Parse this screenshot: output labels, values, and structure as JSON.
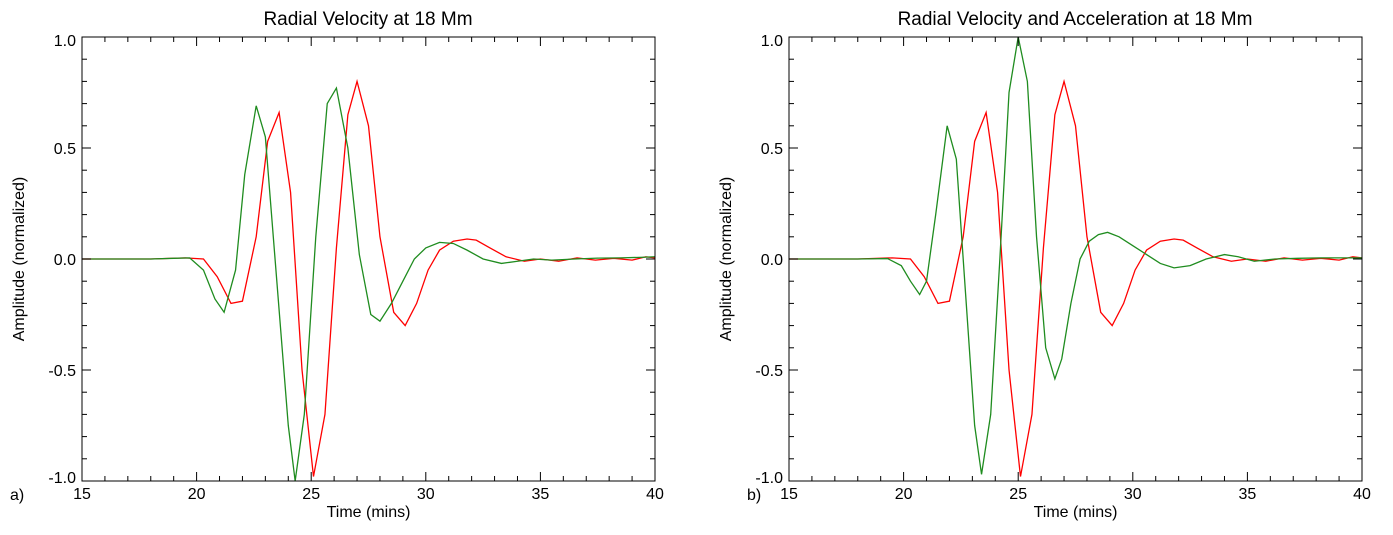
{
  "chart_data": [
    {
      "type": "line",
      "panel_label": "a)",
      "title": "Radial Velocity at 18 Mm",
      "xlabel": "Time (mins)",
      "ylabel": "Amplitude (normalized)",
      "xlim": [
        15,
        40
      ],
      "ylim": [
        -1.0,
        1.0
      ],
      "xticks": [
        "15",
        "20",
        "25",
        "30",
        "35",
        "40"
      ],
      "yticks": [
        "-1.0",
        "-0.5",
        "0.0",
        "0.5",
        "1.0"
      ],
      "grid": false,
      "series": [
        {
          "color": "#ff0000",
          "x": [
            15,
            18,
            19.5,
            20.3,
            20.9,
            21.5,
            22.0,
            22.6,
            23.1,
            23.6,
            24.1,
            24.6,
            25.1,
            25.6,
            26.1,
            26.6,
            27.0,
            27.5,
            28.0,
            28.6,
            29.1,
            29.6,
            30.1,
            30.6,
            31.2,
            31.8,
            32.2,
            32.8,
            33.5,
            34.3,
            35.0,
            35.8,
            36.6,
            37.4,
            38.2,
            39.0,
            39.6,
            40
          ],
          "y": [
            0,
            0,
            0.005,
            0,
            -0.08,
            -0.2,
            -0.19,
            0.1,
            0.53,
            0.66,
            0.3,
            -0.5,
            -0.98,
            -0.7,
            0.05,
            0.65,
            0.8,
            0.6,
            0.1,
            -0.24,
            -0.3,
            -0.2,
            -0.05,
            0.04,
            0.08,
            0.09,
            0.085,
            0.05,
            0.01,
            -0.01,
            0,
            -0.01,
            0.005,
            -0.005,
            0.003,
            -0.005,
            0.01,
            0.005
          ]
        },
        {
          "color": "#1f8c1f",
          "x": [
            15,
            18,
            19.0,
            19.7,
            20.3,
            20.8,
            21.2,
            21.7,
            22.1,
            22.6,
            23.0,
            23.5,
            24.0,
            24.3,
            24.7,
            25.2,
            25.7,
            26.1,
            26.6,
            27.1,
            27.6,
            28.0,
            28.5,
            29.0,
            29.5,
            30.0,
            30.6,
            31.2,
            31.8,
            32.5,
            33.3,
            34.0,
            34.7,
            35.5,
            36.5,
            37.5,
            38.5,
            39.5,
            40
          ],
          "y": [
            0,
            0,
            0.003,
            0.005,
            -0.05,
            -0.18,
            -0.24,
            -0.05,
            0.38,
            0.69,
            0.55,
            -0.1,
            -0.75,
            -1.0,
            -0.7,
            0.1,
            0.7,
            0.77,
            0.5,
            0.02,
            -0.25,
            -0.28,
            -0.2,
            -0.1,
            0,
            0.05,
            0.075,
            0.07,
            0.04,
            0,
            -0.02,
            -0.01,
            0,
            -0.005,
            0,
            0.004,
            0.005,
            0.008,
            0.01
          ]
        }
      ]
    },
    {
      "type": "line",
      "panel_label": "b)",
      "title": "Radial Velocity and Acceleration at 18 Mm",
      "xlabel": "Time (mins)",
      "ylabel": "Amplitude (normalized)",
      "xlim": [
        15,
        40
      ],
      "ylim": [
        -1.0,
        1.0
      ],
      "xticks": [
        "15",
        "20",
        "25",
        "30",
        "35",
        "40"
      ],
      "yticks": [
        "-1.0",
        "-0.5",
        "0.0",
        "0.5",
        "1.0"
      ],
      "grid": false,
      "series": [
        {
          "color": "#ff0000",
          "x": [
            15,
            18,
            19.5,
            20.3,
            20.9,
            21.5,
            22.0,
            22.6,
            23.1,
            23.6,
            24.1,
            24.6,
            25.1,
            25.6,
            26.1,
            26.6,
            27.0,
            27.5,
            28.0,
            28.6,
            29.1,
            29.6,
            30.1,
            30.6,
            31.2,
            31.8,
            32.2,
            32.8,
            33.5,
            34.3,
            35.0,
            35.8,
            36.6,
            37.4,
            38.2,
            39.0,
            39.6,
            40
          ],
          "y": [
            0,
            0,
            0.005,
            0,
            -0.08,
            -0.2,
            -0.19,
            0.1,
            0.53,
            0.66,
            0.3,
            -0.5,
            -0.98,
            -0.7,
            0.05,
            0.65,
            0.8,
            0.6,
            0.1,
            -0.24,
            -0.3,
            -0.2,
            -0.05,
            0.04,
            0.08,
            0.09,
            0.085,
            0.05,
            0.01,
            -0.01,
            0,
            -0.01,
            0.005,
            -0.005,
            0.003,
            -0.005,
            0.01,
            0.005
          ]
        },
        {
          "color": "#1f8c1f",
          "x": [
            15,
            18,
            19.3,
            19.9,
            20.3,
            20.7,
            21.0,
            21.4,
            21.9,
            22.3,
            22.7,
            23.1,
            23.4,
            23.8,
            24.2,
            24.6,
            25.0,
            25.4,
            25.8,
            26.2,
            26.6,
            26.9,
            27.3,
            27.7,
            28.1,
            28.5,
            28.9,
            29.4,
            30.0,
            30.6,
            31.2,
            31.8,
            32.5,
            33.2,
            34.0,
            34.6,
            35.3,
            36.2,
            37.2,
            38.2,
            39.2,
            40
          ],
          "y": [
            0,
            0,
            0.002,
            -0.03,
            -0.1,
            -0.16,
            -0.1,
            0.2,
            0.6,
            0.45,
            -0.15,
            -0.75,
            -0.97,
            -0.7,
            0.0,
            0.75,
            1.0,
            0.8,
            0.1,
            -0.4,
            -0.54,
            -0.45,
            -0.2,
            0.0,
            0.08,
            0.11,
            0.12,
            0.1,
            0.06,
            0.02,
            -0.02,
            -0.04,
            -0.03,
            0.0,
            0.02,
            0.01,
            -0.01,
            0.0,
            0.003,
            0.005,
            0.005,
            0.005
          ]
        }
      ]
    }
  ]
}
